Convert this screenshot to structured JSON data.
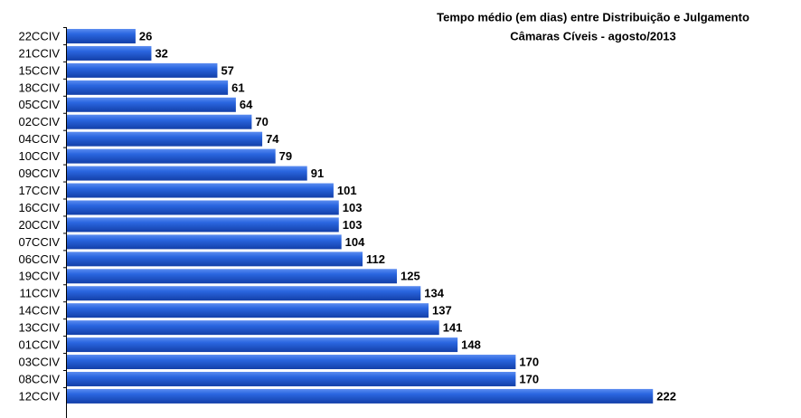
{
  "chart_data": {
    "type": "hbar",
    "title": "Tempo médio (em dias) entre Distribuição e Julgamento",
    "subtitle": "Câmaras Cíveis - agosto/2013",
    "categories": [
      "22CCIV",
      "21CCIV",
      "15CCIV",
      "18CCIV",
      "05CCIV",
      "02CCIV",
      "04CCIV",
      "10CCIV",
      "09CCIV",
      "17CCIV",
      "16CCIV",
      "20CCIV",
      "07CCIV",
      "06CCIV",
      "19CCIV",
      "11CCIV",
      "14CCIV",
      "13CCIV",
      "01CCIV",
      "03CCIV",
      "08CCIV",
      "12CCIV"
    ],
    "values": [
      26,
      32,
      57,
      61,
      64,
      70,
      74,
      79,
      91,
      101,
      103,
      103,
      104,
      112,
      125,
      134,
      137,
      141,
      148,
      170,
      170,
      222
    ],
    "color": "#1f5cd6",
    "xlim": [
      0,
      250
    ]
  }
}
